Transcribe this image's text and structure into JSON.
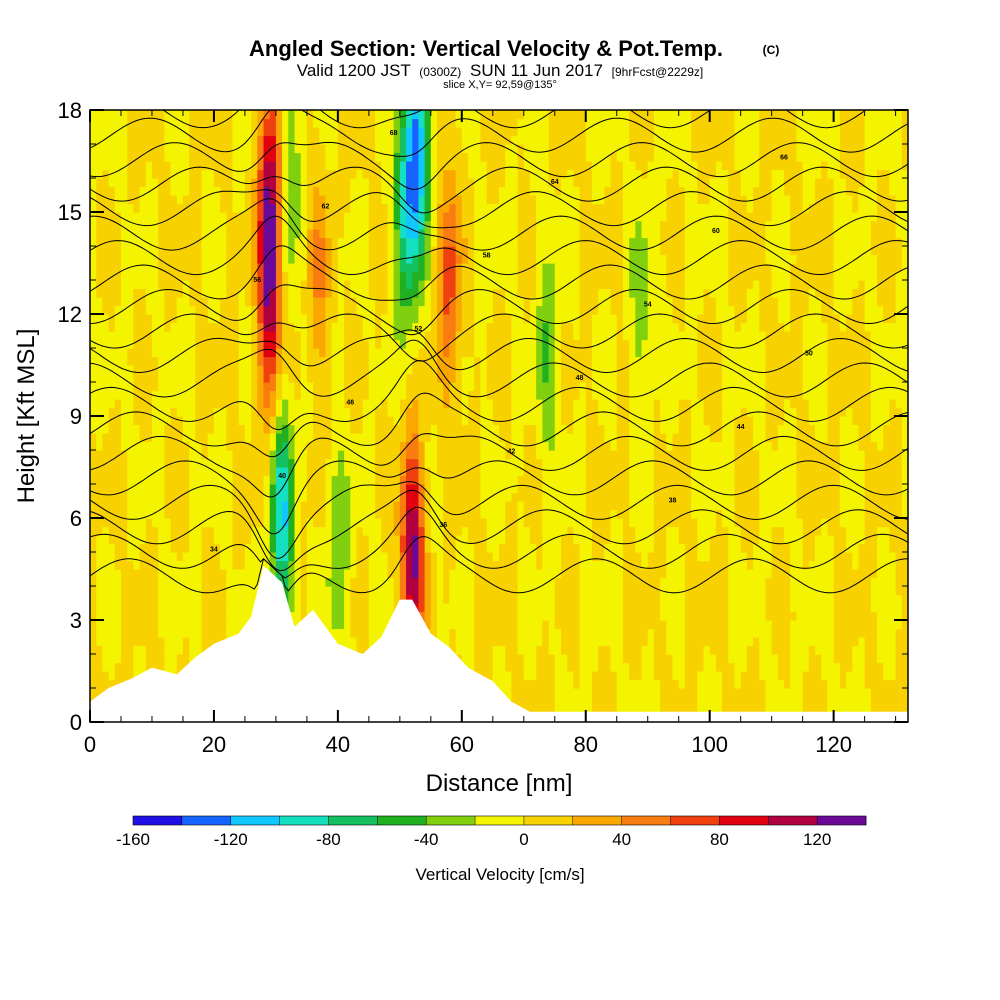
{
  "chart_data": {
    "type": "heatmap",
    "title": "Angled Section: Vertical Velocity & Pot.Temp.",
    "title_mark": "(C)",
    "subtitle": {
      "valid": "Valid 1200 JST",
      "utc": "(0300Z)",
      "date": "SUN 11 Jun 2017",
      "fcst": "[9hrFcst@2229z]"
    },
    "slice": "slice X,Y= 92,59@135°",
    "xlabel": "Distance [nm]",
    "ylabel": "Height [Kft MSL]",
    "xlim": [
      0,
      132
    ],
    "ylim": [
      0,
      18
    ],
    "x_ticks": [
      "0",
      "20",
      "40",
      "60",
      "80",
      "100",
      "120"
    ],
    "y_ticks": [
      "0",
      "3",
      "6",
      "9",
      "12",
      "15",
      "18"
    ],
    "colorbar": {
      "label": "Vertical Velocity [cm/s]",
      "tick_labels": [
        "-160",
        "-120",
        "-80",
        "-40",
        "0",
        "40",
        "80",
        "120"
      ],
      "levels": [
        -160,
        -140,
        -120,
        -100,
        -80,
        -60,
        -40,
        -20,
        0,
        20,
        40,
        60,
        80,
        100,
        120,
        140
      ],
      "colors": [
        "#1f10e6",
        "#1664ff",
        "#10c8ff",
        "#14e0c0",
        "#14c060",
        "#20b020",
        "#80d010",
        "#f4f400",
        "#f8d200",
        "#faa800",
        "#f87c10",
        "#f04010",
        "#e00010",
        "#b00040",
        "#6a0898"
      ]
    },
    "terrain_kft": [
      [
        0,
        0.6
      ],
      [
        3,
        1.0
      ],
      [
        7,
        1.3
      ],
      [
        10,
        1.6
      ],
      [
        14,
        1.4
      ],
      [
        17,
        1.9
      ],
      [
        20,
        2.3
      ],
      [
        24,
        2.6
      ],
      [
        26,
        3.1
      ],
      [
        28,
        4.6
      ],
      [
        31,
        4.1
      ],
      [
        33,
        2.8
      ],
      [
        36,
        3.3
      ],
      [
        40,
        2.3
      ],
      [
        44,
        2.0
      ],
      [
        47,
        2.5
      ],
      [
        50,
        3.6
      ],
      [
        52,
        3.6
      ],
      [
        55,
        2.6
      ],
      [
        58,
        2.2
      ],
      [
        61,
        1.6
      ],
      [
        65,
        1.2
      ],
      [
        68,
        0.6
      ],
      [
        71,
        0.3
      ],
      [
        132,
        0.3
      ]
    ],
    "updraft_cores": [
      {
        "x": 29,
        "z": 15.5,
        "w": 110
      },
      {
        "x": 29,
        "z": 12,
        "w": 90
      },
      {
        "x": 52,
        "z": 5,
        "w": 130
      },
      {
        "x": 58,
        "z": 13,
        "w": 70
      },
      {
        "x": 37,
        "z": 13,
        "w": 40
      }
    ],
    "downdraft_cores": [
      {
        "x": 31,
        "z": 6,
        "w": -100
      },
      {
        "x": 53,
        "z": 17,
        "w": -110
      },
      {
        "x": 51,
        "z": 15,
        "w": -90
      },
      {
        "x": 32,
        "z": 16,
        "w": -40
      },
      {
        "x": 74,
        "z": 11,
        "w": -40
      },
      {
        "x": 40,
        "z": 5,
        "w": -40
      },
      {
        "x": 89,
        "z": 12,
        "w": -30
      }
    ],
    "theta_contours": {
      "base_height_kft": 4.3,
      "spacing_kft": 0.72,
      "count": 20,
      "labels": [
        "34",
        "36",
        "38",
        "40",
        "42",
        "44",
        "46",
        "48",
        "50",
        "52",
        "54",
        "56",
        "58",
        "60",
        "62",
        "64",
        "66",
        "68",
        "70"
      ]
    }
  }
}
